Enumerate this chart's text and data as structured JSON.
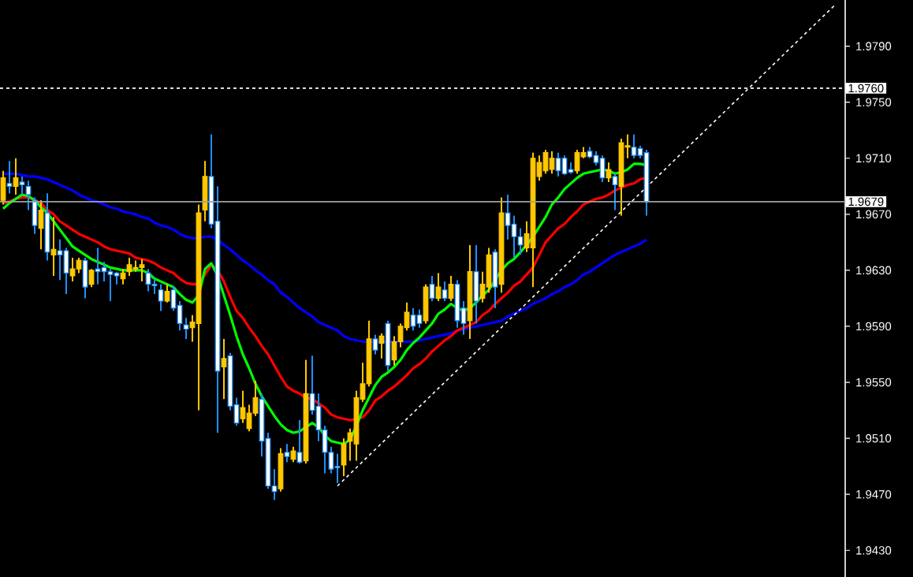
{
  "chart_data": {
    "type": "candlestick",
    "categories": [
      null,
      null,
      null,
      null,
      null,
      null,
      null,
      null,
      null,
      null,
      null,
      null,
      null,
      null,
      null,
      null,
      null,
      null,
      null,
      null,
      null,
      null,
      null,
      null,
      null,
      null,
      null,
      null,
      null,
      null,
      null,
      null,
      null,
      null,
      null,
      null,
      null,
      null,
      null,
      null,
      null,
      null,
      null,
      null,
      null,
      null,
      null,
      null,
      null,
      null,
      null,
      null,
      null,
      null,
      null,
      null,
      null,
      null,
      null,
      null,
      null,
      null,
      null,
      null,
      null,
      null,
      null,
      null,
      null,
      null,
      null,
      null,
      null,
      null,
      null,
      null,
      null,
      null,
      null,
      null,
      null,
      null,
      null,
      null,
      null,
      null,
      null,
      null,
      null,
      null,
      null,
      null,
      null,
      null,
      null,
      null,
      null,
      null,
      null,
      null,
      null,
      null,
      null,
      null,
      null,
      null,
      null,
      null,
      null,
      null,
      null,
      null,
      null,
      null,
      null,
      null,
      null,
      null,
      null,
      null,
      null,
      null,
      null,
      null,
      null,
      null,
      null,
      null,
      null,
      null,
      null,
      null,
      null,
      null
    ],
    "colors": [
      "#ffc800",
      "#1e90ff",
      "#ffc800",
      "#1e90ff",
      "#1e90ff",
      "#1e90ff",
      "#ffc800",
      "#1e90ff",
      "#ffc800",
      "#1e90ff",
      "#1e90ff",
      "#ffc800",
      "#ffc800",
      "#1e90ff",
      "#ffc800",
      "#1e90ff",
      "#1e90ff",
      "#1e90ff",
      "#1e90ff",
      "#ffc800",
      "#ffc800",
      "#ffc800",
      "#ffc800",
      "#1e90ff",
      "#1e90ff",
      "#1e90ff",
      "#ffc800",
      "#1e90ff",
      "#1e90ff",
      "#1e90ff",
      "#ffc800",
      "#ffc800",
      "#ffc800",
      "#1e90ff",
      "#1e90ff",
      "#ffc800",
      "#1e90ff",
      "#1e90ff",
      "#ffc800",
      "#ffc800",
      "#ffc800",
      "#1e90ff",
      "#1e90ff",
      "#1e90ff",
      "#ffc800",
      "#1e90ff",
      "#ffc800",
      "#1e90ff",
      "#ffc800",
      "#1e90ff",
      "#1e90ff",
      "#1e90ff",
      "#1e90ff",
      "#1e90ff",
      "#ffc800",
      "#ffc800",
      "#ffc800",
      "#ffc800",
      "#ffc800",
      "#1e90ff",
      "#ffc800",
      "#1e90ff",
      "#ffc800",
      "#ffc800",
      "#ffc800",
      "#1e90ff",
      "#1e90ff",
      "#ffc800",
      "#1e90ff",
      "#ffc800",
      "#1e90ff",
      "#ffc800",
      "#1e90ff",
      "#1e90ff",
      "#ffc800",
      "#1e90ff",
      "#ffc800",
      "#ffc800",
      "#1e90ff",
      "#ffc800",
      "#1e90ff",
      "#1e90ff",
      "#1e90ff",
      "#ffc800",
      "#ffc800",
      "#ffc800",
      "#ffc800",
      "#ffc800",
      "#1e90ff",
      "#1e90ff",
      "#1e90ff",
      "#ffc800",
      "#ffc800",
      "#1e90ff",
      "#1e90ff",
      "#1e90ff",
      "#ffc800",
      "#1e90ff",
      "#ffc800",
      "#ffc800",
      "#1e90ff",
      "#1e90ff",
      "#1e90ff",
      null,
      null,
      null,
      null,
      null,
      null,
      null,
      null,
      null,
      null,
      null,
      null,
      null,
      null,
      null,
      null,
      null,
      null,
      null,
      null,
      null,
      null,
      null,
      null,
      null,
      null,
      null,
      null,
      null,
      null,
      null
    ],
    "ohlc": [
      [
        1.968,
        1.9701,
        1.9677,
        1.9696
      ],
      [
        1.9692,
        1.9708,
        1.9685,
        1.969
      ],
      [
        1.969,
        1.971,
        1.9684,
        1.9696
      ],
      [
        1.9693,
        1.9697,
        1.9684,
        1.9691
      ],
      [
        1.969,
        1.9694,
        1.9673,
        1.9684
      ],
      [
        1.968,
        1.9682,
        1.9656,
        1.9662
      ],
      [
        1.966,
        1.968,
        1.9645,
        1.9673
      ],
      [
        1.9671,
        1.9685,
        1.9637,
        1.9643
      ],
      [
        1.9641,
        1.9668,
        1.9626,
        1.9645
      ],
      [
        1.9644,
        1.9652,
        1.9623,
        1.9641
      ],
      [
        1.9644,
        1.9646,
        1.9613,
        1.9628
      ],
      [
        1.9626,
        1.9639,
        1.9622,
        1.9631
      ],
      [
        1.9631,
        1.9639,
        1.9628,
        1.9637
      ],
      [
        1.9637,
        1.9639,
        1.961,
        1.9618
      ],
      [
        1.962,
        1.9631,
        1.9618,
        1.963
      ],
      [
        1.9631,
        1.9646,
        1.962,
        1.9629
      ],
      [
        1.9632,
        1.9636,
        1.9622,
        1.9629
      ],
      [
        1.9629,
        1.9631,
        1.9608,
        1.9627
      ],
      [
        1.9628,
        1.9629,
        1.962,
        1.9626
      ],
      [
        1.9624,
        1.9631,
        1.962,
        1.9628
      ],
      [
        1.9629,
        1.9639,
        1.9626,
        1.9634
      ],
      [
        1.9631,
        1.9637,
        1.9629,
        1.9632
      ],
      [
        1.9632,
        1.9638,
        1.9622,
        1.9634
      ],
      [
        1.9628,
        1.9631,
        1.9615,
        1.962
      ],
      [
        1.962,
        1.9624,
        1.9613,
        1.9619
      ],
      [
        1.9616,
        1.962,
        1.9601,
        1.9608
      ],
      [
        1.9608,
        1.962,
        1.9607,
        1.9615
      ],
      [
        1.9616,
        1.9619,
        1.9601,
        1.9603
      ],
      [
        1.9605,
        1.9608,
        1.9587,
        1.9592
      ],
      [
        1.9591,
        1.9596,
        1.9581,
        1.9588
      ],
      [
        1.9589,
        1.9598,
        1.9579,
        1.9593
      ],
      [
        1.9592,
        1.9677,
        1.953,
        1.9671
      ],
      [
        1.9673,
        1.9708,
        1.9665,
        1.9697
      ],
      [
        1.9697,
        1.9727,
        1.966,
        1.9663
      ],
      [
        1.9665,
        1.969,
        1.9514,
        1.9558
      ],
      [
        1.9561,
        1.9581,
        1.9538,
        1.9567
      ],
      [
        1.9569,
        1.9571,
        1.953,
        1.9533
      ],
      [
        1.9534,
        1.9539,
        1.9519,
        1.9521
      ],
      [
        1.9524,
        1.9544,
        1.9521,
        1.9532
      ],
      [
        1.9517,
        1.9534,
        1.9515,
        1.9528
      ],
      [
        1.9528,
        1.9551,
        1.9526,
        1.9539
      ],
      [
        1.9538,
        1.9542,
        1.9497,
        1.9508
      ],
      [
        1.951,
        1.9514,
        1.9474,
        1.9476
      ],
      [
        1.9476,
        1.9488,
        1.9466,
        1.9472
      ],
      [
        1.9474,
        1.9503,
        1.9472,
        1.9499
      ],
      [
        1.95,
        1.9506,
        1.9493,
        1.9497
      ],
      [
        1.9495,
        1.9504,
        1.9493,
        1.9501
      ],
      [
        1.95,
        1.9523,
        1.9492,
        1.9493
      ],
      [
        1.9494,
        1.9566,
        1.9492,
        1.9542
      ],
      [
        1.9542,
        1.9569,
        1.9527,
        1.953
      ],
      [
        1.9533,
        1.9542,
        1.9508,
        1.9516
      ],
      [
        1.9516,
        1.9519,
        1.9485,
        1.95
      ],
      [
        1.95,
        1.9504,
        1.9485,
        1.9488
      ],
      [
        1.949,
        1.9499,
        1.9478,
        1.9489
      ],
      [
        1.9491,
        1.951,
        1.9483,
        1.9506
      ],
      [
        1.9508,
        1.9517,
        1.9494,
        1.9514
      ],
      [
        1.9506,
        1.9544,
        1.9494,
        1.9539
      ],
      [
        1.9538,
        1.9564,
        1.9536,
        1.9549
      ],
      [
        1.9549,
        1.9594,
        1.9547,
        1.9581
      ],
      [
        1.9581,
        1.9584,
        1.957,
        1.9573
      ],
      [
        1.9578,
        1.9585,
        1.9567,
        1.9583
      ],
      [
        1.9592,
        1.9594,
        1.9558,
        1.9562
      ],
      [
        1.9566,
        1.9583,
        1.9562,
        1.9579
      ],
      [
        1.9579,
        1.9592,
        1.9575,
        1.959
      ],
      [
        1.9589,
        1.9607,
        1.9587,
        1.96
      ],
      [
        1.9598,
        1.9603,
        1.9587,
        1.959
      ],
      [
        1.9598,
        1.9602,
        1.9589,
        1.9592
      ],
      [
        1.9594,
        1.962,
        1.9592,
        1.9618
      ],
      [
        1.962,
        1.9626,
        1.9608,
        1.961
      ],
      [
        1.961,
        1.9628,
        1.9608,
        1.9618
      ],
      [
        1.9616,
        1.9622,
        1.9608,
        1.961
      ],
      [
        1.961,
        1.9626,
        1.9608,
        1.962
      ],
      [
        1.962,
        1.9623,
        1.9589,
        1.9594
      ],
      [
        1.9603,
        1.9608,
        1.9584,
        1.9592
      ],
      [
        1.9594,
        1.9648,
        1.9581,
        1.9629
      ],
      [
        1.9629,
        1.9648,
        1.9592,
        1.9608
      ],
      [
        1.961,
        1.9629,
        1.9607,
        1.962
      ],
      [
        1.9618,
        1.9646,
        1.9614,
        1.9641
      ],
      [
        1.9643,
        1.9645,
        1.9603,
        1.9618
      ],
      [
        1.962,
        1.9682,
        1.9614,
        1.9671
      ],
      [
        1.9671,
        1.9684,
        1.9652,
        1.9662
      ],
      [
        1.9663,
        1.9669,
        1.9639,
        1.9654
      ],
      [
        1.9654,
        1.966,
        1.9641,
        1.9648
      ],
      [
        1.9646,
        1.9665,
        1.9643,
        1.9656
      ],
      [
        1.9646,
        1.9714,
        1.9618,
        1.971
      ],
      [
        1.9697,
        1.9712,
        1.9694,
        1.9707
      ],
      [
        1.9701,
        1.9716,
        1.9699,
        1.9714
      ],
      [
        1.9702,
        1.9715,
        1.9699,
        1.971
      ],
      [
        1.971,
        1.9714,
        1.9697,
        1.9701
      ],
      [
        1.971,
        1.9712,
        1.9698,
        1.9699
      ],
      [
        1.9702,
        1.9707,
        1.9699,
        1.97
      ],
      [
        1.9701,
        1.9716,
        1.9699,
        1.9714
      ],
      [
        1.9711,
        1.9718,
        1.971,
        1.9714
      ],
      [
        1.9715,
        1.9718,
        1.971,
        1.9711
      ],
      [
        1.9712,
        1.9715,
        1.9705,
        1.9707
      ],
      [
        1.971,
        1.9712,
        1.9693,
        1.9696
      ],
      [
        1.9696,
        1.9707,
        1.9693,
        1.9702
      ],
      [
        1.9697,
        1.9699,
        1.9673,
        1.9691
      ],
      [
        1.969,
        1.9724,
        1.9669,
        1.9721
      ],
      [
        1.9718,
        1.9727,
        1.971,
        1.9719
      ],
      [
        1.9718,
        1.9727,
        1.971,
        1.9712
      ],
      [
        1.9717,
        1.9719,
        1.971,
        1.9712
      ],
      [
        1.9714,
        1.9716,
        1.9669,
        1.9679
      ],
      null,
      null,
      null,
      null,
      null,
      null,
      null,
      null,
      null,
      null,
      null,
      null,
      null,
      null,
      null,
      null,
      null,
      null,
      null,
      null,
      null,
      null,
      null,
      null,
      null,
      null,
      null,
      null,
      null,
      null,
      null
    ],
    "series": [
      {
        "type": "line",
        "color": "#0000ff",
        "values": [
          1.9699,
          1.9699,
          1.9699,
          1.9698,
          1.9697,
          1.9697,
          1.9696,
          1.9695,
          1.9693,
          1.9691,
          1.9689,
          1.9687,
          1.9684,
          1.9682,
          1.968,
          1.9679,
          1.9677,
          1.9675,
          1.9674,
          1.9672,
          1.9671,
          1.967,
          1.9668,
          1.9667,
          1.9664,
          1.9662,
          1.9661,
          1.9659,
          1.9656,
          1.9654,
          1.9653,
          1.9653,
          1.9654,
          1.9654,
          1.9652,
          1.9648,
          1.9645,
          1.9641,
          1.9637,
          1.9634,
          1.963,
          1.9627,
          1.9623,
          1.962,
          1.9614,
          1.9611,
          1.9607,
          1.9603,
          1.96,
          1.9597,
          1.9593,
          1.9591,
          1.9589,
          1.9587,
          1.9583,
          1.9581,
          1.958,
          1.9579,
          1.9579,
          1.9579,
          1.9579,
          1.9579,
          1.9579,
          1.9579,
          1.9579,
          1.9579,
          1.958,
          1.9581,
          1.9582,
          1.9583,
          1.9584,
          1.9585,
          1.9587,
          1.9588,
          1.9589,
          1.959,
          1.9591,
          1.9592,
          1.9593,
          1.9594,
          1.9597,
          1.9599,
          1.9601,
          1.9603,
          1.9606,
          1.9608,
          1.961,
          1.9613,
          1.9615,
          1.9618,
          1.962,
          1.9623,
          1.9627,
          1.9629,
          1.9632,
          1.9635,
          1.9638,
          1.9641,
          1.9643,
          1.9645,
          1.9647,
          1.9649,
          1.9652,
          null,
          null,
          null,
          null,
          null,
          null,
          null,
          null,
          null,
          null,
          null,
          null,
          null,
          null,
          null,
          null,
          null,
          null,
          null,
          null,
          null,
          null,
          null,
          null,
          null,
          null,
          null,
          null,
          null,
          null,
          null
        ]
      },
      {
        "type": "line",
        "color": "#ff0000",
        "values": [
          1.9678,
          1.9679,
          1.9681,
          1.9682,
          1.9682,
          1.968,
          1.9678,
          1.9673,
          1.967,
          1.9665,
          1.9662,
          1.9659,
          1.9656,
          1.9654,
          1.9652,
          1.965,
          1.9647,
          1.9645,
          1.9644,
          1.9643,
          1.9642,
          1.9639,
          1.9638,
          1.9637,
          1.9635,
          1.9632,
          1.963,
          1.9628,
          1.9624,
          1.9621,
          1.962,
          1.962,
          1.9627,
          1.9634,
          1.963,
          1.9622,
          1.9611,
          1.9601,
          1.9596,
          1.9589,
          1.9583,
          1.9576,
          1.957,
          1.9562,
          1.9554,
          1.9547,
          1.9544,
          1.9542,
          1.9539,
          1.9538,
          1.9535,
          1.9532,
          1.9527,
          1.9525,
          1.9524,
          1.9523,
          1.9524,
          1.9525,
          1.953,
          1.9537,
          1.954,
          1.9544,
          1.9547,
          1.9551,
          1.9555,
          1.956,
          1.9563,
          1.9567,
          1.9572,
          1.9576,
          1.958,
          1.9583,
          1.9587,
          1.9589,
          1.9591,
          1.9593,
          1.9598,
          1.9601,
          1.9606,
          1.961,
          1.9614,
          1.9619,
          1.9622,
          1.9627,
          1.9632,
          1.9641,
          1.965,
          1.9655,
          1.966,
          1.9663,
          1.9668,
          1.9672,
          1.9677,
          1.9679,
          1.9681,
          1.9682,
          1.9684,
          1.9687,
          1.9689,
          1.9691,
          1.9692,
          1.9695,
          1.9696,
          null,
          null,
          null,
          null,
          null,
          null,
          null,
          null,
          null,
          null,
          null,
          null,
          null,
          null,
          null,
          null,
          null,
          null,
          null,
          null,
          null,
          null,
          null,
          null,
          null,
          null,
          null,
          null,
          null,
          null,
          null
        ]
      },
      {
        "type": "line",
        "color": "#00ff00",
        "values": [
          1.9674,
          1.9678,
          1.9681,
          1.9684,
          1.9683,
          1.968,
          1.9675,
          1.9671,
          1.9665,
          1.9659,
          1.9653,
          1.9647,
          1.9644,
          1.9641,
          1.9638,
          1.9636,
          1.9634,
          1.9632,
          1.9631,
          1.963,
          1.963,
          1.963,
          1.963,
          1.9628,
          1.9624,
          1.9622,
          1.962,
          1.9618,
          1.9613,
          1.9609,
          1.9607,
          1.9612,
          1.9631,
          1.9635,
          1.9626,
          1.9612,
          1.9598,
          1.9583,
          1.957,
          1.956,
          1.9549,
          1.954,
          1.9533,
          1.9526,
          1.952,
          1.9516,
          1.9514,
          1.9515,
          1.9518,
          1.9521,
          1.9518,
          1.9512,
          1.9508,
          1.9507,
          1.9506,
          1.9509,
          1.9519,
          1.953,
          1.9539,
          1.9548,
          1.9554,
          1.9557,
          1.9561,
          1.9566,
          1.9573,
          1.9578,
          1.9582,
          1.9587,
          1.9592,
          1.9599,
          1.9602,
          1.9606,
          1.9603,
          1.9601,
          1.9603,
          1.9607,
          1.9612,
          1.9616,
          null,
          1.963,
          1.9635,
          1.9638,
          1.9643,
          1.9648,
          1.9654,
          1.9661,
          1.9668,
          1.9677,
          1.9682,
          1.9688,
          1.9692,
          1.9696,
          1.9699,
          1.97,
          1.9701,
          1.9702,
          1.9701,
          1.9699,
          1.97,
          1.9702,
          1.9706,
          1.9706,
          1.9705,
          null,
          null,
          null,
          null,
          null,
          null,
          null,
          null,
          null,
          null,
          null,
          null,
          null,
          null,
          null,
          null,
          null,
          null,
          null,
          null,
          null,
          null,
          null,
          null,
          null,
          null,
          null,
          null,
          null,
          null,
          null
        ]
      },
      {
        "type": "line",
        "color": "#ffffff",
        "line_style": "dashed",
        "values": [
          null,
          null,
          null,
          null,
          null,
          null,
          null,
          null,
          null,
          null,
          null,
          null,
          null,
          null,
          null,
          null,
          null,
          null,
          null,
          null,
          null,
          null,
          null,
          null,
          null,
          null,
          null,
          null,
          null,
          null,
          null,
          null,
          null,
          null,
          null,
          null,
          null,
          null,
          null,
          null,
          null,
          null,
          null,
          null,
          null,
          null,
          null,
          null,
          null,
          null,
          null,
          null,
          null,
          1.9476,
          null,
          null,
          null,
          null,
          null,
          null,
          null,
          null,
          null,
          null,
          null,
          null,
          null,
          null,
          null,
          null,
          null,
          null,
          null,
          null,
          null,
          null,
          null,
          null,
          null,
          null,
          null,
          null,
          null,
          null,
          null,
          null,
          null,
          null,
          null,
          null,
          null,
          null,
          null,
          null,
          null,
          null,
          null,
          null,
          null,
          null,
          null,
          null,
          null,
          null,
          null,
          null,
          null,
          null,
          null,
          null,
          null,
          null,
          null,
          null,
          null,
          null,
          null,
          null,
          null,
          null,
          null,
          null,
          null,
          null,
          null,
          null,
          null,
          null,
          null,
          null,
          null,
          null,
          1.982,
          null
        ]
      }
    ],
    "ylim": [
      1.9411,
      1.9823
    ],
    "yticks": [
      {
        "value": 1.943,
        "label": "1.9430"
      },
      {
        "value": 1.947,
        "label": "1.9470"
      },
      {
        "value": 1.951,
        "label": "1.9510"
      },
      {
        "value": 1.955,
        "label": "1.9550"
      },
      {
        "value": 1.959,
        "label": "1.9590"
      },
      {
        "value": 1.963,
        "label": "1.9630"
      },
      {
        "value": 1.967,
        "label": "1.9670"
      },
      {
        "value": 1.971,
        "label": "1.9710"
      },
      {
        "value": 1.975,
        "label": "1.9750"
      },
      {
        "value": 1.979,
        "label": "1.9790"
      }
    ],
    "tick_labels": "y",
    "ref_lines": [
      {
        "axis": "y",
        "value": 1.976,
        "label": "1.9760",
        "color": "#ffffff",
        "line_style": "dashed"
      },
      {
        "axis": "y",
        "value": 1.9679,
        "label": "1.9679",
        "color": "#a0a0a4"
      }
    ]
  }
}
